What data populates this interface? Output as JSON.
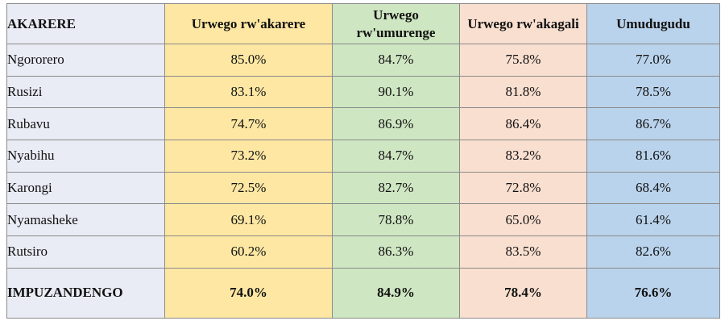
{
  "table": {
    "headers": [
      "AKARERE",
      "Urwego rw'akarere",
      "Urwego rw'umurenge",
      "Urwego rw'akagali",
      "Umudugudu"
    ],
    "rows": [
      {
        "district": "Ngororero",
        "values": [
          "85.0%",
          "84.7%",
          "75.8%",
          "77.0%"
        ]
      },
      {
        "district": "Rusizi",
        "values": [
          "83.1%",
          "90.1%",
          "81.8%",
          "78.5%"
        ]
      },
      {
        "district": "Rubavu",
        "values": [
          "74.7%",
          "86.9%",
          "86.4%",
          "86.7%"
        ]
      },
      {
        "district": "Nyabihu",
        "values": [
          "73.2%",
          "84.7%",
          "83.2%",
          "81.6%"
        ]
      },
      {
        "district": "Karongi",
        "values": [
          "72.5%",
          "82.7%",
          "72.8%",
          "68.4%"
        ]
      },
      {
        "district": "Nyamasheke",
        "values": [
          "69.1%",
          "78.8%",
          "65.0%",
          "61.4%"
        ]
      },
      {
        "district": "Rutsiro",
        "values": [
          "60.2%",
          "86.3%",
          "83.5%",
          "82.6%"
        ]
      }
    ],
    "total": {
      "label": "IMPUZANDENGO",
      "values": [
        "74.0%",
        "84.9%",
        "78.4%",
        "76.6%"
      ]
    },
    "column_colors": [
      "#e9ecf5",
      "#fde7a3",
      "#cfe6c2",
      "#f9dfd0",
      "#bad3ec"
    ]
  }
}
